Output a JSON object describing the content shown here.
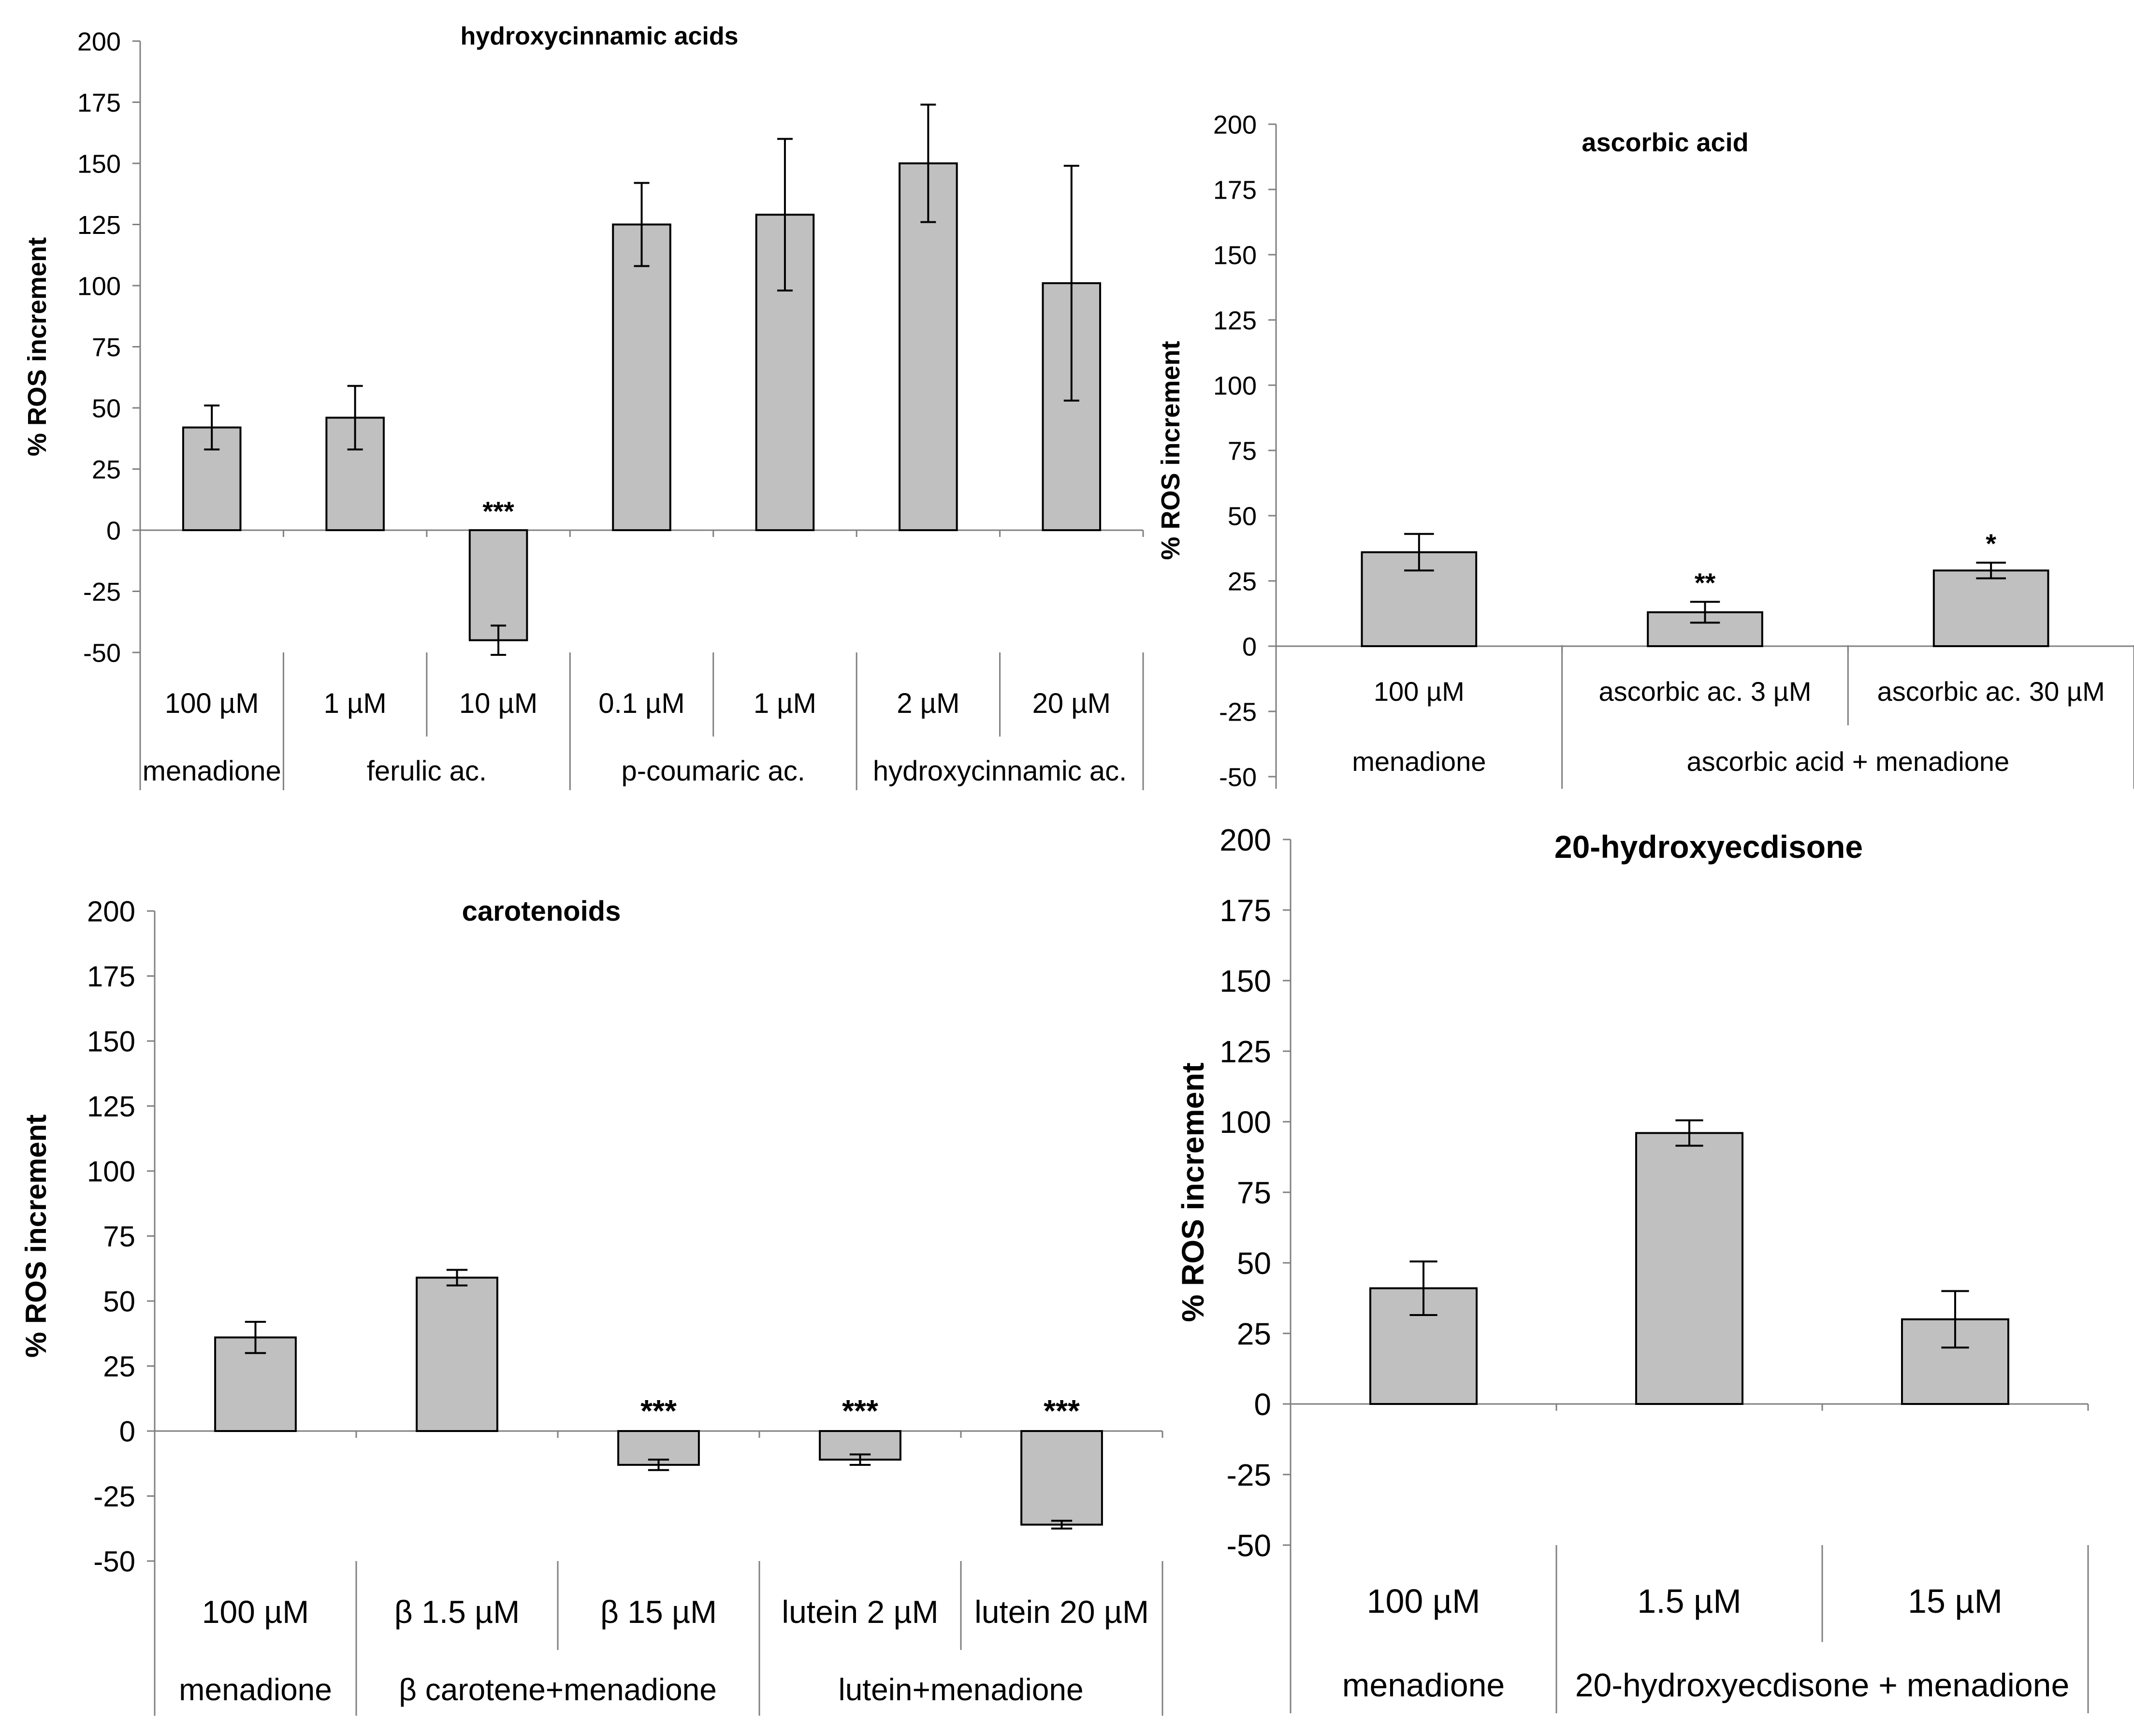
{
  "chart_data": [
    {
      "id": "hca",
      "type": "bar",
      "title": "hydroxycinnamic acids",
      "ylabel": "% ROS increment",
      "ylim": [
        -50,
        200
      ],
      "yticks": [
        "-50",
        "-25",
        "0",
        "25",
        "50",
        "75",
        "100",
        "125",
        "150",
        "175",
        "200"
      ],
      "categories": [
        "100 µM",
        "1 µM",
        "10 µM",
        "0.1 µM",
        "1 µM",
        "2 µM",
        "20 µM"
      ],
      "values": [
        42,
        46,
        -45,
        125,
        129,
        150,
        101
      ],
      "errors": [
        9,
        13,
        6,
        17,
        31,
        24,
        48
      ],
      "significance": [
        "",
        "",
        "***",
        "",
        "",
        "",
        ""
      ],
      "groups": [
        {
          "label": "menadione",
          "span": 1
        },
        {
          "label": "ferulic ac.",
          "span": 2
        },
        {
          "label": "p-coumaric ac.",
          "span": 2
        },
        {
          "label": "hydroxycinnamic ac.",
          "span": 2
        }
      ]
    },
    {
      "id": "asc",
      "type": "bar",
      "title": "ascorbic acid",
      "ylabel": "% ROS increment",
      "ylim": [
        -50,
        200
      ],
      "yticks": [
        "-50",
        "-25",
        "0",
        "25",
        "50",
        "75",
        "100",
        "125",
        "150",
        "175",
        "200"
      ],
      "categories": [
        "100 µM",
        "ascorbic ac. 3 µM",
        "ascorbic ac.  30 µM"
      ],
      "values": [
        36,
        13,
        29
      ],
      "errors": [
        7,
        4,
        3
      ],
      "significance": [
        "",
        "**",
        "*"
      ],
      "groups": [
        {
          "label": "menadione",
          "span": 1
        },
        {
          "label": "ascorbic acid + menadione",
          "span": 2
        }
      ]
    },
    {
      "id": "car",
      "type": "bar",
      "title": "carotenoids",
      "ylabel": "% ROS increment",
      "ylim": [
        -50,
        200
      ],
      "yticks": [
        "-50",
        "-25",
        "0",
        "25",
        "50",
        "75",
        "100",
        "125",
        "150",
        "175",
        "200"
      ],
      "categories": [
        "100 µM",
        "β 1.5 µM",
        "β 15 µM",
        "lutein 2 µM",
        "lutein 20 µM"
      ],
      "values": [
        36,
        59,
        -13,
        -11,
        -36
      ],
      "errors": [
        6,
        3,
        2,
        2,
        1.5
      ],
      "significance": [
        "",
        "",
        "***",
        "***",
        "***"
      ],
      "groups": [
        {
          "label": "menadione",
          "span": 1
        },
        {
          "label": "β carotene+menadione",
          "span": 2
        },
        {
          "label": "lutein+menadione",
          "span": 2
        }
      ]
    },
    {
      "id": "hyd",
      "type": "bar",
      "title": "20-hydroxyecdisone",
      "ylabel": "% ROS increment",
      "ylim": [
        -50,
        200
      ],
      "yticks": [
        "-50",
        "-25",
        "0",
        "25",
        "50",
        "75",
        "100",
        "125",
        "150",
        "175",
        "200"
      ],
      "categories": [
        "100 µM",
        "1.5 µM",
        "15 µM"
      ],
      "values": [
        41,
        96,
        30
      ],
      "errors": [
        9.5,
        4.5,
        10
      ],
      "significance": [
        "",
        "",
        ""
      ],
      "groups": [
        {
          "label": "menadione",
          "span": 1
        },
        {
          "label": "20-hydroxyecdisone + menadione",
          "span": 2
        }
      ]
    }
  ]
}
